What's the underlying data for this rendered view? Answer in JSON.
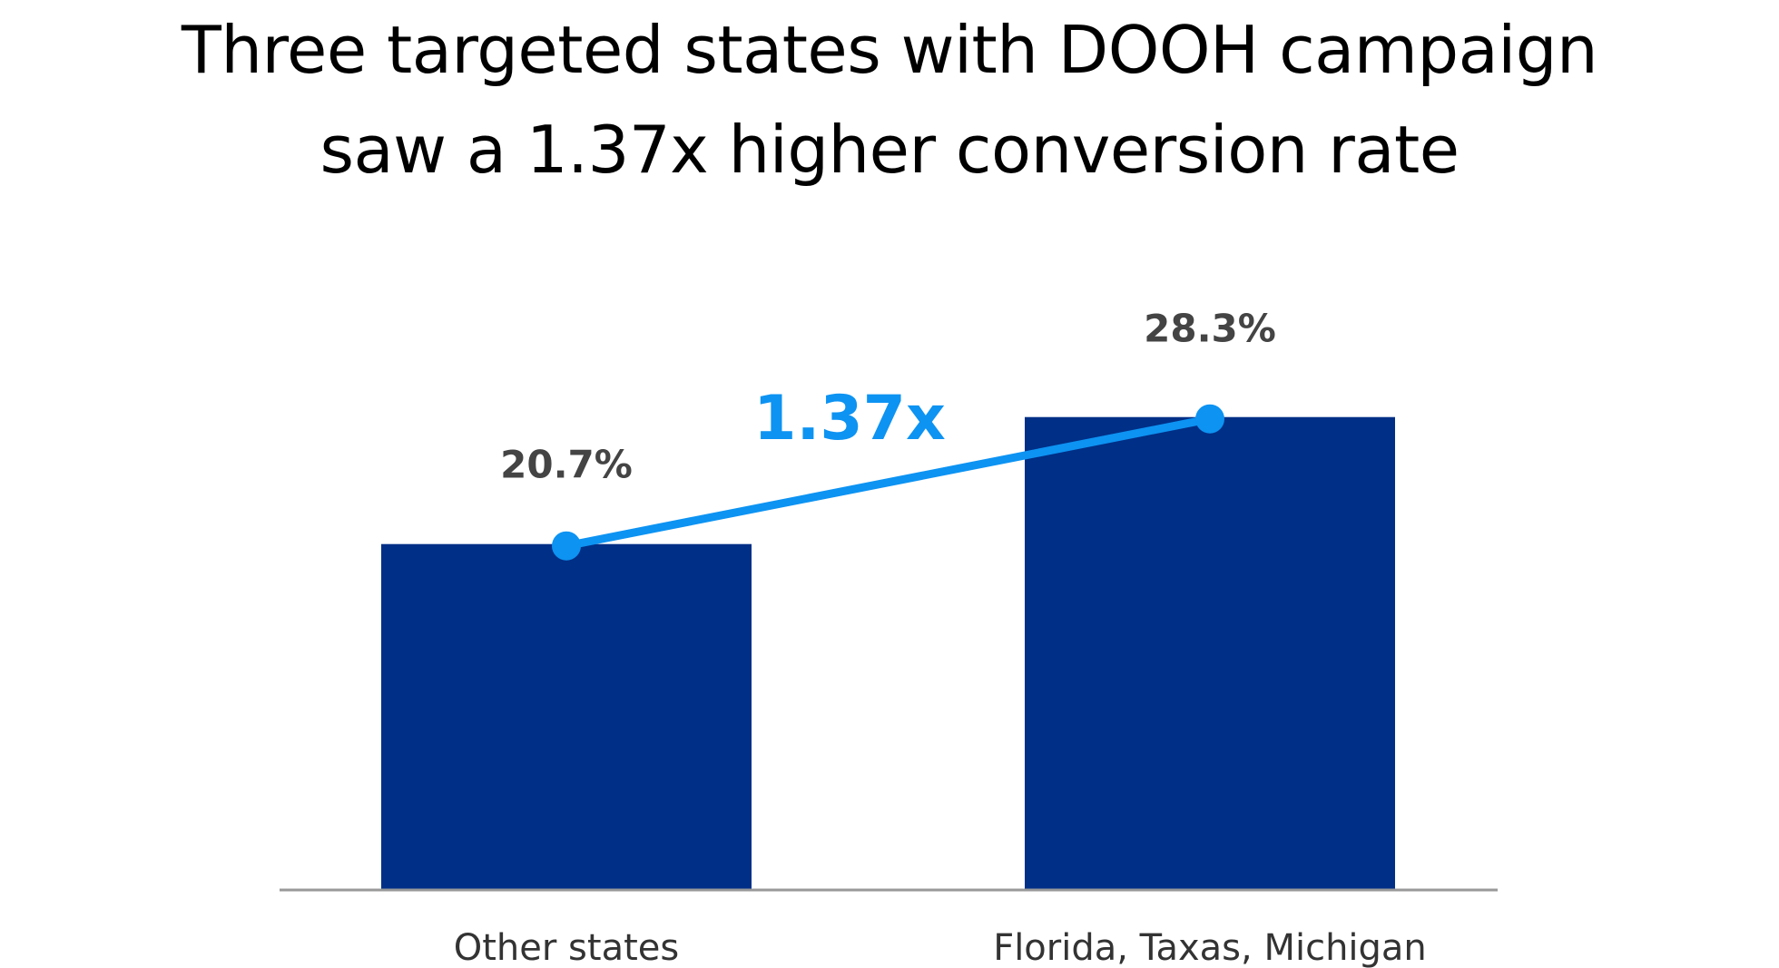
{
  "title": {
    "line1": "Three targeted states with DOOH campaign",
    "line2": "saw a 1.37x higher conversion rate"
  },
  "chart_data": {
    "type": "bar",
    "categories": [
      "Other states",
      "Florida, Taxas, Michigan"
    ],
    "values": [
      20.7,
      28.3
    ],
    "data_labels": [
      "20.7%",
      "28.3%"
    ],
    "unit": "%",
    "annotation": {
      "type": "connector-line",
      "label": "1.37x"
    },
    "ylim": [
      0,
      30
    ],
    "grid": false,
    "colors": {
      "bar": "#002F87",
      "connector": "#0D93F2",
      "axis": "#999999",
      "label_text": "#444444",
      "category_text": "#333333",
      "title_text": "#000000"
    }
  }
}
